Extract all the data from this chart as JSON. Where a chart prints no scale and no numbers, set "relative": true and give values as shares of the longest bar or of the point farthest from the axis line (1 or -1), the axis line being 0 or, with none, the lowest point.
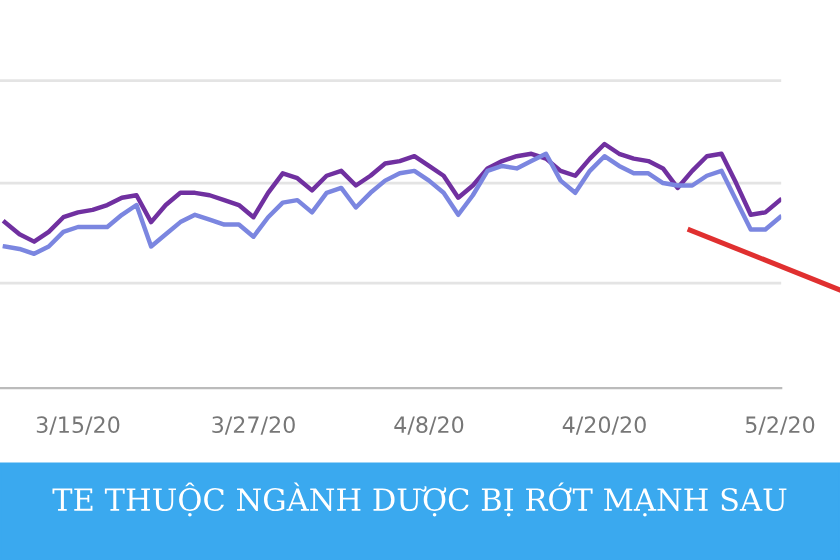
{
  "chart_data": {
    "type": "line",
    "title": "TE THUỘC NGÀNH DƯỢC BỊ RỚT MẠNH SAU",
    "relative": true,
    "x": [
      "2020-03-10",
      "2020-03-11",
      "2020-03-12",
      "2020-03-13",
      "2020-03-14",
      "2020-03-15",
      "2020-03-16",
      "2020-03-17",
      "2020-03-18",
      "2020-03-19",
      "2020-03-20",
      "2020-03-21",
      "2020-03-22",
      "2020-03-23",
      "2020-03-24",
      "2020-03-25",
      "2020-03-26",
      "2020-03-27",
      "2020-03-28",
      "2020-03-29",
      "2020-03-30",
      "2020-03-31",
      "2020-04-01",
      "2020-04-02",
      "2020-04-03",
      "2020-04-04",
      "2020-04-05",
      "2020-04-06",
      "2020-04-07",
      "2020-04-08",
      "2020-04-09",
      "2020-04-10",
      "2020-04-11",
      "2020-04-12",
      "2020-04-13",
      "2020-04-14",
      "2020-04-15",
      "2020-04-16",
      "2020-04-17",
      "2020-04-18",
      "2020-04-19",
      "2020-04-20",
      "2020-04-21",
      "2020-04-22",
      "2020-04-23",
      "2020-04-24",
      "2020-04-25",
      "2020-04-26",
      "2020-04-27",
      "2020-04-28",
      "2020-04-29",
      "2020-04-30",
      "2020-05-01",
      "2020-05-02"
    ],
    "series": [
      {
        "color": "#7030a0",
        "values": [
          0.68,
          0.63,
          0.6,
          0.64,
          0.7,
          0.72,
          0.73,
          0.75,
          0.78,
          0.79,
          0.68,
          0.75,
          0.8,
          0.8,
          0.79,
          0.77,
          0.75,
          0.7,
          0.8,
          0.88,
          0.86,
          0.81,
          0.87,
          0.89,
          0.83,
          0.87,
          0.92,
          0.93,
          0.95,
          0.91,
          0.87,
          0.78,
          0.83,
          0.9,
          0.93,
          0.95,
          0.96,
          0.94,
          0.89,
          0.87,
          0.94,
          1.0,
          0.96,
          0.94,
          0.93,
          0.9,
          0.82,
          0.89,
          0.95,
          0.96,
          0.84,
          0.71,
          0.72,
          0.77
        ]
      },
      {
        "color": "#7b86e0",
        "values": [
          0.58,
          0.57,
          0.55,
          0.58,
          0.64,
          0.66,
          0.66,
          0.66,
          0.71,
          0.75,
          0.58,
          0.63,
          0.68,
          0.71,
          0.69,
          0.67,
          0.67,
          0.62,
          0.7,
          0.76,
          0.77,
          0.72,
          0.8,
          0.82,
          0.74,
          0.8,
          0.85,
          0.88,
          0.89,
          0.85,
          0.8,
          0.71,
          0.79,
          0.89,
          0.91,
          0.9,
          0.93,
          0.96,
          0.85,
          0.8,
          0.89,
          0.95,
          0.91,
          0.88,
          0.88,
          0.84,
          0.83,
          0.83,
          0.87,
          0.89,
          0.77,
          0.65,
          0.65,
          0.7
        ]
      }
    ],
    "xlim": [
      "2020-03-09T16:00",
      "2020-05-02T02:00"
    ],
    "xticks": [
      {
        "value": "2020-03-15",
        "label": "3/15/20"
      },
      {
        "value": "2020-03-27",
        "label": "3/27/20"
      },
      {
        "value": "2020-04-08",
        "label": "4/8/20"
      },
      {
        "value": "2020-04-20",
        "label": "4/20/20"
      },
      {
        "value": "2020-05-02",
        "label": "5/2/20"
      }
    ],
    "ref_lines": [
      {
        "axis": "y",
        "value": 0.43,
        "color": "#e4e4e4"
      },
      {
        "axis": "y",
        "value": 0.84,
        "color": "#e4e4e4"
      },
      {
        "axis": "y",
        "value": 1.26,
        "color": "#e4e4e4"
      }
    ],
    "tick_labels": "x",
    "line_style": "solid",
    "marker": "none"
  }
}
